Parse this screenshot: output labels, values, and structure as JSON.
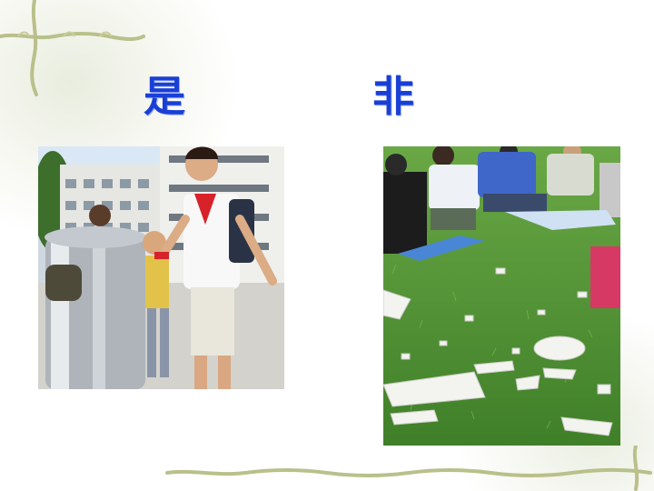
{
  "slide": {
    "title_left": "是",
    "title_right": "非"
  },
  "colors": {
    "title": "#1a3fd6",
    "vine": "#b9c08a",
    "grass": "#4f9a2e"
  },
  "icons": {
    "corner_vine_top": "vine-ornament",
    "corner_vine_bottom": "vine-ornament"
  }
}
